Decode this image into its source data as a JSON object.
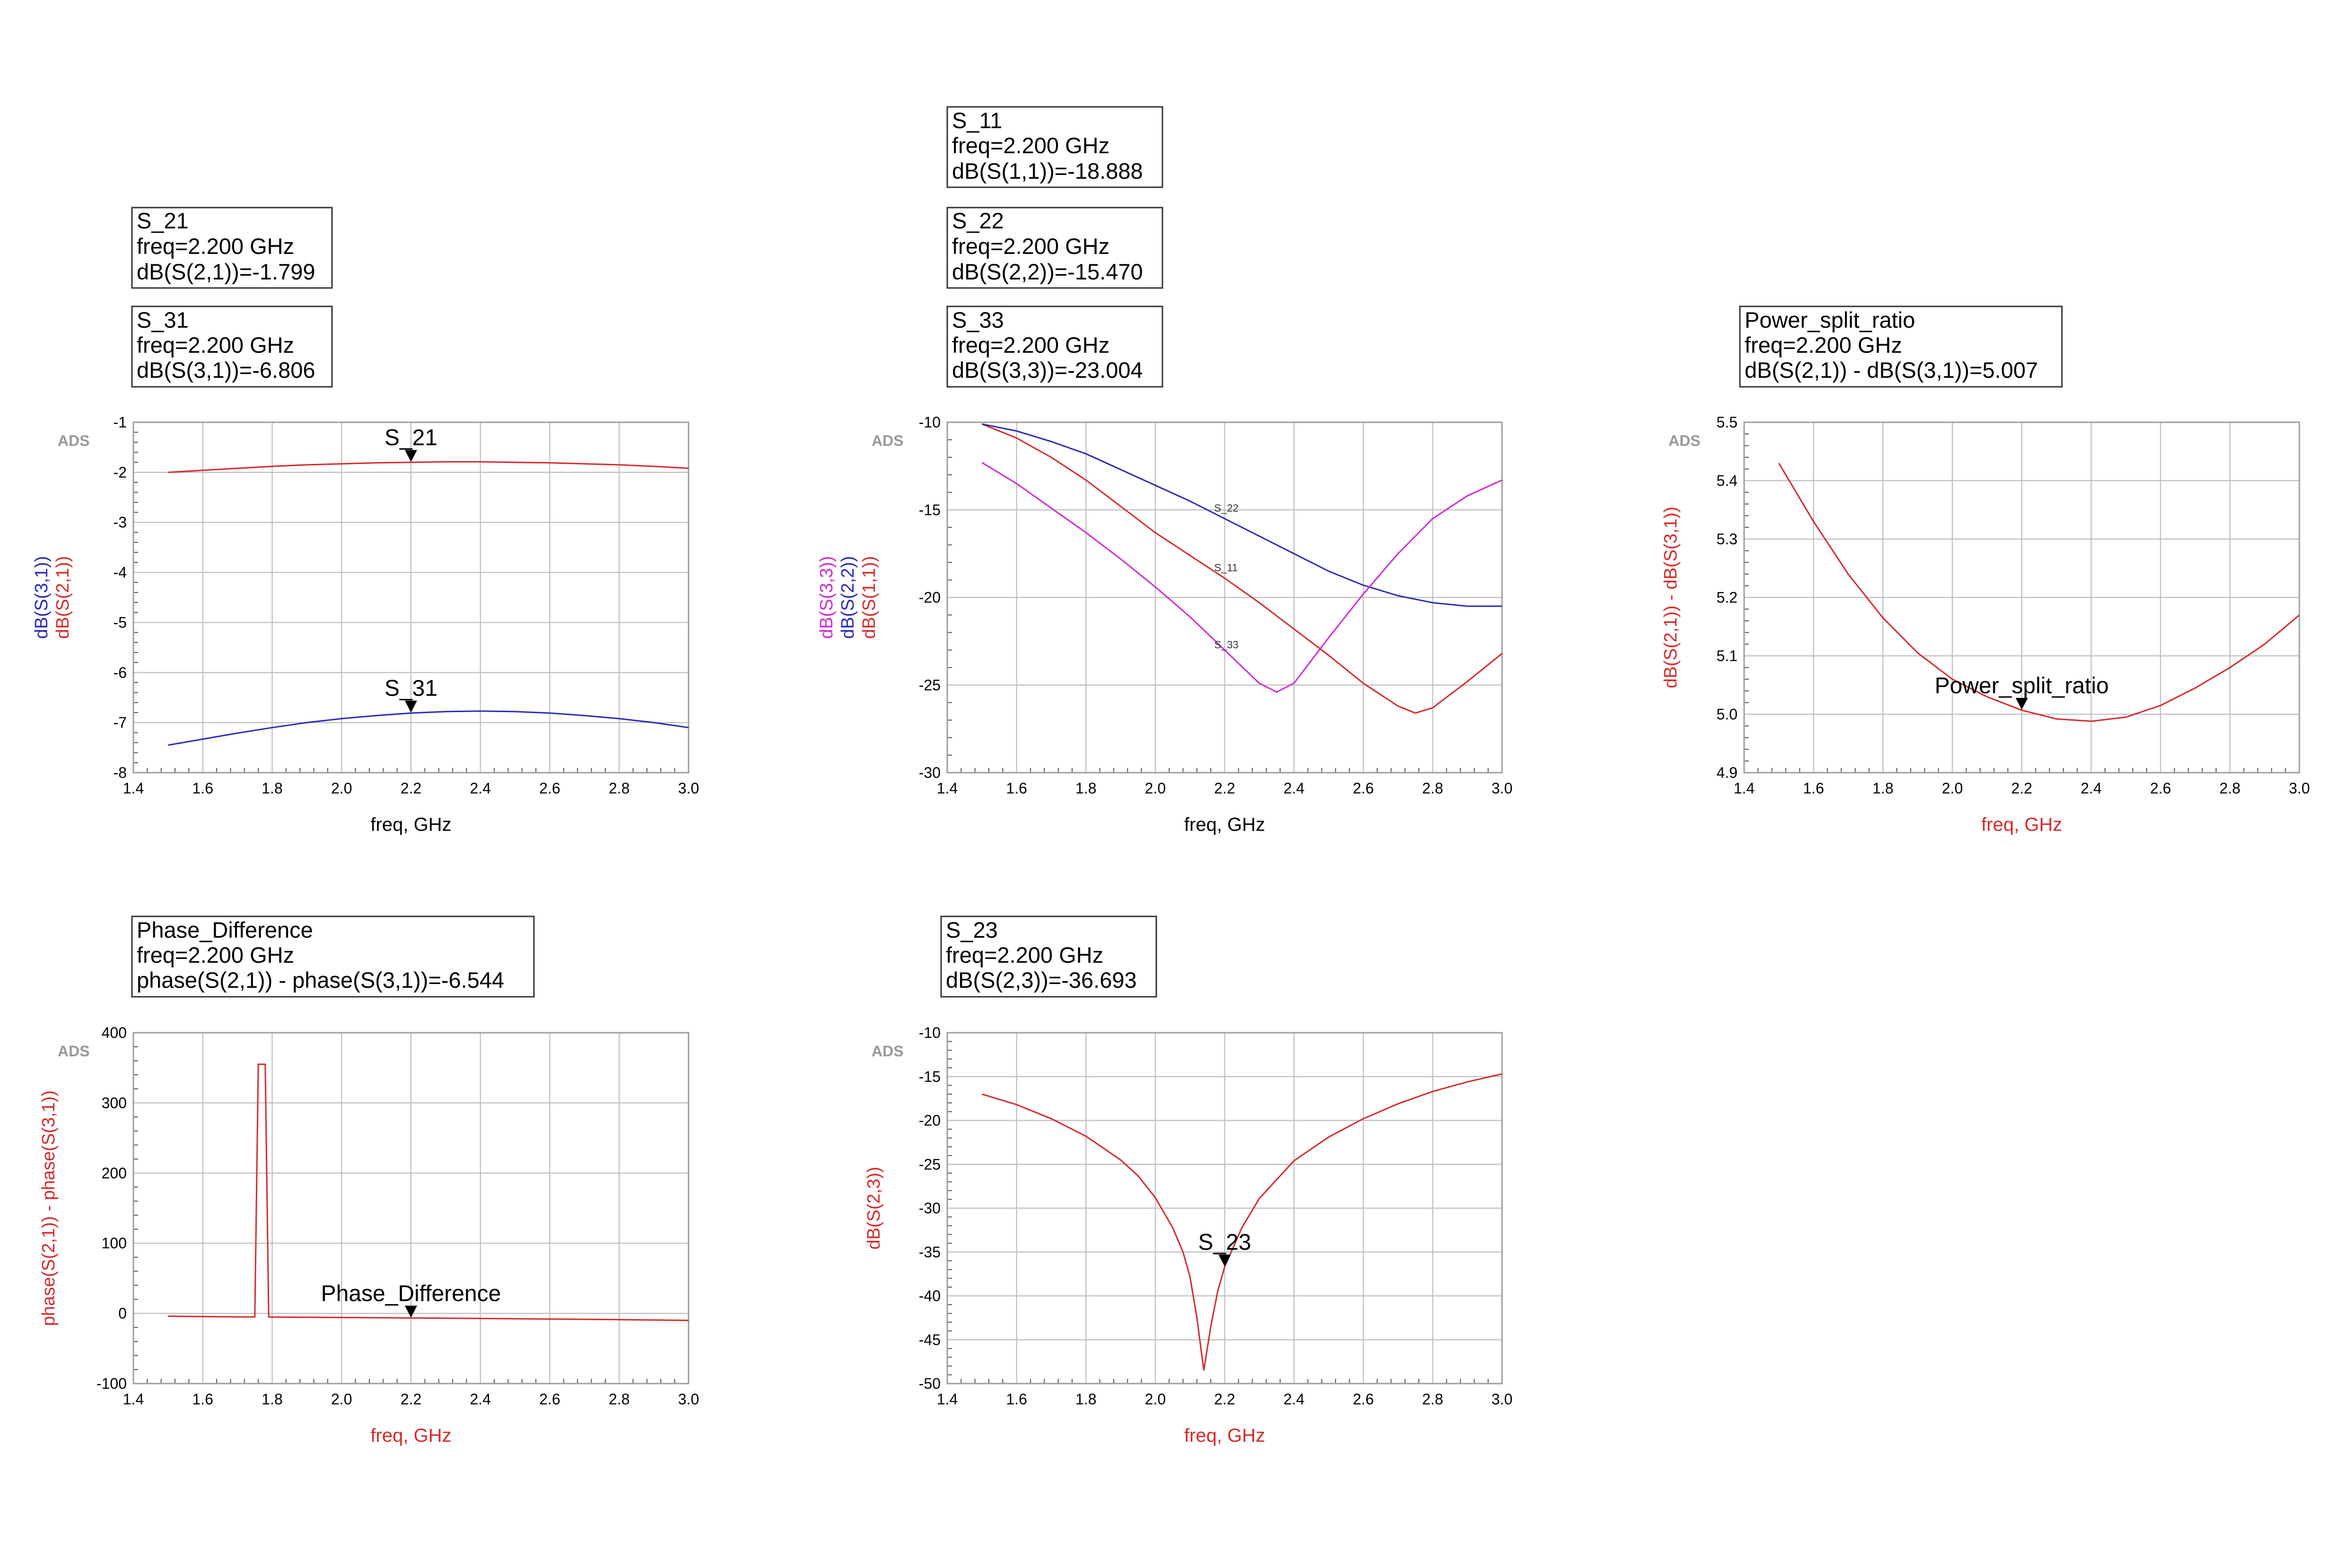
{
  "watermark": "ADS",
  "colors": {
    "red": "#d42a2a",
    "blue": "#2a2ab4",
    "magenta": "#d02ad0",
    "black": "#000000"
  },
  "marker_boxes": [
    {
      "id": "S21",
      "lines": [
        "S_21",
        "freq=2.200 GHz",
        "dB(S(2,1))=-1.799"
      ]
    },
    {
      "id": "S31",
      "lines": [
        "S_31",
        "freq=2.200 GHz",
        "dB(S(3,1))=-6.806"
      ]
    },
    {
      "id": "S11",
      "lines": [
        "S_11",
        "freq=2.200 GHz",
        "dB(S(1,1))=-18.888"
      ]
    },
    {
      "id": "S22",
      "lines": [
        "S_22",
        "freq=2.200 GHz",
        "dB(S(2,2))=-15.470"
      ]
    },
    {
      "id": "S33",
      "lines": [
        "S_33",
        "freq=2.200 GHz",
        "dB(S(3,3))=-23.004"
      ]
    },
    {
      "id": "PSR",
      "lines": [
        "Power_split_ratio",
        "freq=2.200 GHz",
        "dB(S(2,1)) - dB(S(3,1))=5.007"
      ]
    },
    {
      "id": "PD",
      "lines": [
        "Phase_Difference",
        "freq=2.200 GHz",
        "phase(S(2,1)) - phase(S(3,1))=-6.544"
      ]
    },
    {
      "id": "S23",
      "lines": [
        "S_23",
        "freq=2.200 GHz",
        "dB(S(2,3))=-36.693"
      ]
    }
  ],
  "chart_data": [
    {
      "id": "transmission",
      "type": "line",
      "xlabel": "freq, GHz",
      "xlabel_color": "#000000",
      "ylabels": [
        {
          "text": "dB(S(3,1))",
          "color": "#2a2ab4"
        },
        {
          "text": "dB(S(2,1))",
          "color": "#d42a2a"
        }
      ],
      "xlim": [
        1.4,
        3.0
      ],
      "ylim": [
        -8,
        -1
      ],
      "xticks": [
        1.4,
        1.6,
        1.8,
        2.0,
        2.2,
        2.4,
        2.6,
        2.8,
        3.0
      ],
      "yticks": [
        -8,
        -7,
        -6,
        -5,
        -4,
        -3,
        -2,
        -1
      ],
      "xtick_labels": [
        "1.4",
        "1.6",
        "1.8",
        "2.0",
        "2.2",
        "2.4",
        "2.6",
        "2.8",
        "3.0"
      ],
      "ytick_labels": [
        "-8",
        "-7",
        "-6",
        "-5",
        "-4",
        "-3",
        "-2",
        "-1"
      ],
      "grid": true,
      "series": [
        {
          "name": "dB(S(2,1))",
          "color": "#d42a2a",
          "x": [
            1.5,
            1.6,
            1.7,
            1.8,
            1.9,
            2.0,
            2.1,
            2.2,
            2.3,
            2.4,
            2.5,
            2.6,
            2.7,
            2.8,
            2.9,
            3.0
          ],
          "y": [
            -2.0,
            -1.96,
            -1.92,
            -1.88,
            -1.85,
            -1.83,
            -1.81,
            -1.8,
            -1.79,
            -1.79,
            -1.8,
            -1.81,
            -1.83,
            -1.85,
            -1.88,
            -1.92
          ]
        },
        {
          "name": "dB(S(3,1))",
          "color": "#2a2ab4",
          "x": [
            1.5,
            1.6,
            1.7,
            1.8,
            1.9,
            2.0,
            2.1,
            2.2,
            2.3,
            2.4,
            2.5,
            2.6,
            2.7,
            2.8,
            2.9,
            3.0
          ],
          "y": [
            -7.45,
            -7.33,
            -7.21,
            -7.1,
            -7.0,
            -6.92,
            -6.86,
            -6.81,
            -6.78,
            -6.77,
            -6.78,
            -6.81,
            -6.86,
            -6.92,
            -7.0,
            -7.1
          ]
        }
      ],
      "markers": [
        {
          "label": "S_21",
          "x": 2.2,
          "y": -1.799
        },
        {
          "label": "S_31",
          "x": 2.2,
          "y": -6.806
        }
      ]
    },
    {
      "id": "reflection",
      "type": "line",
      "xlabel": "freq, GHz",
      "xlabel_color": "#000000",
      "ylabels": [
        {
          "text": "dB(S(3,3))",
          "color": "#d02ad0"
        },
        {
          "text": "dB(S(2,2))",
          "color": "#2a2ab4"
        },
        {
          "text": "dB(S(1,1))",
          "color": "#d42a2a"
        }
      ],
      "xlim": [
        1.4,
        3.0
      ],
      "ylim": [
        -30,
        -10
      ],
      "xticks": [
        1.4,
        1.6,
        1.8,
        2.0,
        2.2,
        2.4,
        2.6,
        2.8,
        3.0
      ],
      "yticks": [
        -30,
        -25,
        -20,
        -15,
        -10
      ],
      "xtick_labels": [
        "1.4",
        "1.6",
        "1.8",
        "2.0",
        "2.2",
        "2.4",
        "2.6",
        "2.8",
        "3.0"
      ],
      "ytick_labels": [
        "-30",
        "-25",
        "-20",
        "-15",
        "-10"
      ],
      "grid": true,
      "series": [
        {
          "name": "S_11",
          "color": "#d42a2a",
          "x": [
            1.5,
            1.6,
            1.7,
            1.8,
            1.9,
            2.0,
            2.1,
            2.2,
            2.3,
            2.4,
            2.5,
            2.6,
            2.7,
            2.75,
            2.8,
            2.9,
            3.0
          ],
          "y": [
            -10.1,
            -10.9,
            -12.0,
            -13.3,
            -14.8,
            -16.3,
            -17.6,
            -18.9,
            -20.3,
            -21.8,
            -23.3,
            -24.9,
            -26.2,
            -26.6,
            -26.3,
            -24.8,
            -23.2
          ]
        },
        {
          "name": "S_22",
          "color": "#2a2ab4",
          "x": [
            1.5,
            1.6,
            1.7,
            1.8,
            1.9,
            2.0,
            2.1,
            2.2,
            2.3,
            2.4,
            2.5,
            2.6,
            2.7,
            2.8,
            2.9,
            3.0
          ],
          "y": [
            -10.1,
            -10.5,
            -11.1,
            -11.8,
            -12.7,
            -13.6,
            -14.5,
            -15.5,
            -16.5,
            -17.5,
            -18.5,
            -19.3,
            -19.9,
            -20.3,
            -20.5,
            -20.5
          ]
        },
        {
          "name": "S_33",
          "color": "#d02ad0",
          "x": [
            1.5,
            1.6,
            1.7,
            1.8,
            1.9,
            2.0,
            2.1,
            2.2,
            2.3,
            2.35,
            2.4,
            2.5,
            2.6,
            2.7,
            2.8,
            2.9,
            3.0
          ],
          "y": [
            -12.3,
            -13.5,
            -14.9,
            -16.3,
            -17.8,
            -19.4,
            -21.1,
            -23.0,
            -24.9,
            -25.4,
            -24.9,
            -22.3,
            -19.8,
            -17.5,
            -15.5,
            -14.2,
            -13.3
          ]
        }
      ],
      "curve_labels": [
        {
          "label": "S_22",
          "x": 2.17,
          "y": -15.1
        },
        {
          "label": "S_11",
          "x": 2.17,
          "y": -18.5
        },
        {
          "label": "S_33",
          "x": 2.17,
          "y": -22.9
        }
      ]
    },
    {
      "id": "power_split",
      "type": "line",
      "xlabel": "freq, GHz",
      "xlabel_color": "#d42a2a",
      "ylabels": [
        {
          "text": "dB(S(2,1)) - dB(S(3,1))",
          "color": "#d42a2a"
        }
      ],
      "xlim": [
        1.4,
        3.0
      ],
      "ylim": [
        4.9,
        5.5
      ],
      "xticks": [
        1.4,
        1.6,
        1.8,
        2.0,
        2.2,
        2.4,
        2.6,
        2.8,
        3.0
      ],
      "yticks": [
        4.9,
        5.0,
        5.1,
        5.2,
        5.3,
        5.4,
        5.5
      ],
      "xtick_labels": [
        "1.4",
        "1.6",
        "1.8",
        "2.0",
        "2.2",
        "2.4",
        "2.6",
        "2.8",
        "3.0"
      ],
      "ytick_labels": [
        "4.9",
        "5.0",
        "5.1",
        "5.2",
        "5.3",
        "5.4",
        "5.5"
      ],
      "grid": true,
      "series": [
        {
          "name": "Power_split_ratio",
          "color": "#d42a2a",
          "x": [
            1.5,
            1.6,
            1.7,
            1.8,
            1.9,
            2.0,
            2.1,
            2.2,
            2.3,
            2.4,
            2.5,
            2.6,
            2.7,
            2.8,
            2.9,
            3.0
          ],
          "y": [
            5.43,
            5.33,
            5.24,
            5.165,
            5.105,
            5.06,
            5.03,
            5.007,
            4.992,
            4.988,
            4.995,
            5.015,
            5.045,
            5.08,
            5.12,
            5.17
          ]
        }
      ],
      "markers": [
        {
          "label": "Power_split_ratio",
          "x": 2.2,
          "y": 5.007
        }
      ]
    },
    {
      "id": "phase_difference",
      "type": "line",
      "xlabel": "freq, GHz",
      "xlabel_color": "#d42a2a",
      "ylabels": [
        {
          "text": "phase(S(2,1)) - phase(S(3,1))",
          "color": "#d42a2a"
        }
      ],
      "xlim": [
        1.4,
        3.0
      ],
      "ylim": [
        -100,
        400
      ],
      "xticks": [
        1.4,
        1.6,
        1.8,
        2.0,
        2.2,
        2.4,
        2.6,
        2.8,
        3.0
      ],
      "yticks": [
        -100,
        0,
        100,
        200,
        300,
        400
      ],
      "xtick_labels": [
        "1.4",
        "1.6",
        "1.8",
        "2.0",
        "2.2",
        "2.4",
        "2.6",
        "2.8",
        "3.0"
      ],
      "ytick_labels": [
        "-100",
        "0",
        "100",
        "200",
        "300",
        "400"
      ],
      "grid": true,
      "series": [
        {
          "name": "Phase_Difference",
          "color": "#d42a2a",
          "x": [
            1.5,
            1.6,
            1.7,
            1.75,
            1.76,
            1.78,
            1.79,
            1.8,
            1.9,
            2.0,
            2.2,
            2.4,
            2.6,
            2.8,
            3.0
          ],
          "y": [
            -4,
            -4.5,
            -5,
            -5,
            355,
            355,
            -5,
            -5.2,
            -5.5,
            -5.8,
            -6.5,
            -7.2,
            -8,
            -8.8,
            -10
          ]
        }
      ],
      "markers": [
        {
          "label": "Phase_Difference",
          "x": 2.2,
          "y": -6.544
        }
      ]
    },
    {
      "id": "isolation",
      "type": "line",
      "xlabel": "freq, GHz",
      "xlabel_color": "#d42a2a",
      "ylabels": [
        {
          "text": "dB(S(2,3))",
          "color": "#d42a2a"
        }
      ],
      "xlim": [
        1.4,
        3.0
      ],
      "ylim": [
        -50,
        -10
      ],
      "xticks": [
        1.4,
        1.6,
        1.8,
        2.0,
        2.2,
        2.4,
        2.6,
        2.8,
        3.0
      ],
      "yticks": [
        -50,
        -45,
        -40,
        -35,
        -30,
        -25,
        -20,
        -15,
        -10
      ],
      "xtick_labels": [
        "1.4",
        "1.6",
        "1.8",
        "2.0",
        "2.2",
        "2.4",
        "2.6",
        "2.8",
        "3.0"
      ],
      "ytick_labels": [
        "-50",
        "-45",
        "-40",
        "-35",
        "-30",
        "-25",
        "-20",
        "-15",
        "-10"
      ],
      "grid": true,
      "series": [
        {
          "name": "S_23",
          "color": "#d42a2a",
          "x": [
            1.5,
            1.6,
            1.7,
            1.8,
            1.9,
            1.95,
            2.0,
            2.05,
            2.08,
            2.1,
            2.12,
            2.14,
            2.16,
            2.18,
            2.2,
            2.25,
            2.3,
            2.4,
            2.5,
            2.6,
            2.7,
            2.8,
            2.9,
            3.0
          ],
          "y": [
            -17,
            -18.2,
            -19.8,
            -21.8,
            -24.5,
            -26.3,
            -28.8,
            -32.2,
            -35,
            -37.8,
            -42.5,
            -48.5,
            -43.5,
            -39.5,
            -36.7,
            -32.2,
            -28.9,
            -24.6,
            -21.9,
            -19.8,
            -18.1,
            -16.7,
            -15.6,
            -14.7
          ]
        }
      ],
      "markers": [
        {
          "label": "S_23",
          "x": 2.2,
          "y": -36.693
        }
      ]
    }
  ]
}
